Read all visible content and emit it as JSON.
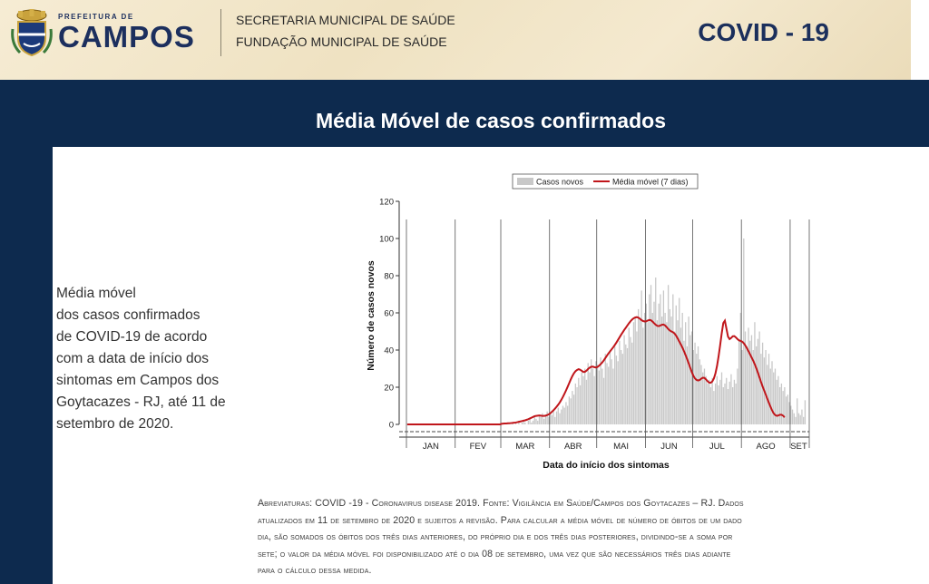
{
  "header": {
    "logo_small": "PREFEITURA DE",
    "logo_name": "CAMPOS",
    "line1": "SECRETARIA MUNICIPAL DE SAÚDE",
    "line2": "FUNDAÇÃO MUNICIPAL DE  SAÚDE",
    "covid_title": "COVID - 19"
  },
  "banner": {
    "title": "Média Móvel de casos confirmados"
  },
  "description": [
    "Média móvel",
    "dos casos confirmados",
    "de COVID-19 de acordo",
    "com a data de início dos",
    "sintomas em Campos dos",
    "Goytacazes - RJ, até 11 de",
    "setembro de 2020."
  ],
  "footnote": [
    "Abreviaturas: COVID -19 - Coronavirus disease 2019. Fonte: Vigilância em Saúde/Campos dos Goytacazes – RJ. Dados",
    "atualizados em 11 de setembro de 2020 e sujeitos a revisão. Para calcular a média móvel de número de óbitos de um dado",
    "dia, são somados os óbitos dos três dias anteriores, do próprio dia e dos três dias posteriores, dividindo-se a soma por",
    "sete; o valor da média móvel foi disponibilizado até o dia 08 de setembro, uma vez que são necessários três dias adiante",
    "para o cálculo dessa medida."
  ],
  "colors": {
    "bar": "#c8c8c8",
    "line": "#c0161b",
    "banner": "#0d2a4e"
  },
  "chart_data": {
    "type": "bar",
    "xlabel": "Data do início dos sintomas",
    "ylabel": "Número de casos novos",
    "ylim": [
      0,
      120
    ],
    "yticks": [
      0,
      20,
      40,
      60,
      80,
      100,
      120
    ],
    "months": [
      "JAN",
      "FEV",
      "MAR",
      "ABR",
      "MAI",
      "JUN",
      "JUL",
      "AGO",
      "SET"
    ],
    "month_start_day": [
      0,
      31,
      60,
      91,
      121,
      152,
      182,
      213,
      244
    ],
    "total_days": 255,
    "legend_position": "top",
    "series": [
      {
        "name": "Casos novos",
        "type": "bar",
        "values": [
          0,
          0,
          0,
          0,
          0,
          0,
          0,
          0,
          0,
          0,
          0,
          0,
          0,
          0,
          0,
          0,
          0,
          0,
          0,
          0,
          0,
          0,
          0,
          0,
          0,
          0,
          0,
          0,
          0,
          0,
          0,
          0,
          0,
          0,
          0,
          0,
          0,
          0,
          0,
          0,
          0,
          0,
          0,
          0,
          0,
          0,
          0,
          0,
          0,
          0,
          0,
          0,
          0,
          0,
          0,
          0,
          0,
          0,
          0,
          0,
          0,
          0,
          1,
          0,
          1,
          0,
          0,
          1,
          0,
          1,
          0,
          2,
          0,
          1,
          2,
          1,
          0,
          2,
          3,
          1,
          2,
          4,
          3,
          2,
          5,
          4,
          6,
          3,
          5,
          7,
          4,
          6,
          5,
          8,
          4,
          7,
          9,
          6,
          8,
          10,
          9,
          12,
          10,
          15,
          14,
          18,
          16,
          22,
          20,
          25,
          21,
          28,
          26,
          30,
          24,
          33,
          28,
          35,
          30,
          26,
          34,
          32,
          29,
          36,
          30,
          25,
          38,
          33,
          31,
          40,
          35,
          30,
          42,
          37,
          34,
          45,
          40,
          38,
          48,
          43,
          41,
          52,
          47,
          44,
          55,
          58,
          50,
          62,
          56,
          72,
          52,
          60,
          65,
          55,
          70,
          75,
          60,
          66,
          79,
          56,
          65,
          70,
          58,
          72,
          60,
          55,
          75,
          62,
          58,
          70,
          50,
          64,
          56,
          68,
          52,
          60,
          45,
          55,
          42,
          58,
          48,
          50,
          40,
          44,
          38,
          42,
          35,
          32,
          28,
          30,
          26,
          22,
          24,
          20,
          25,
          18,
          22,
          26,
          21,
          24,
          28,
          20,
          22,
          25,
          19,
          23,
          27,
          20,
          24,
          22,
          30,
          45,
          60,
          40,
          100,
          50,
          42,
          52,
          45,
          48,
          40,
          55,
          42,
          46,
          50,
          38,
          44,
          36,
          40,
          32,
          38,
          30,
          34,
          28,
          30,
          24,
          26,
          20,
          22,
          18,
          20,
          15,
          16,
          12,
          10,
          8,
          6,
          4,
          14,
          6,
          5,
          8,
          4,
          13,
          0,
          0,
          0
        ]
      },
      {
        "name": "Média móvel (7 dias)",
        "type": "line",
        "values": [
          0,
          0,
          0,
          0,
          0,
          0,
          0,
          0,
          0,
          0,
          0,
          0,
          0,
          0,
          0,
          0,
          0,
          0,
          0,
          0,
          0,
          0,
          0,
          0,
          0,
          0,
          0,
          0,
          0,
          0,
          0,
          0,
          0,
          0,
          0,
          0,
          0,
          0,
          0,
          0,
          0,
          0,
          0,
          0,
          0,
          0,
          0,
          0,
          0,
          0,
          0,
          0,
          0,
          0,
          0,
          0,
          0,
          0,
          0,
          0,
          0.3,
          0.4,
          0.5,
          0.5,
          0.6,
          0.6,
          0.7,
          0.8,
          0.9,
          1.0,
          1.2,
          1.4,
          1.6,
          1.8,
          2.0,
          2.2,
          2.5,
          2.8,
          3.2,
          3.6,
          4.0,
          4.4,
          4.6,
          4.7,
          4.8,
          4.7,
          4.6,
          4.6,
          4.7,
          5.0,
          5.4,
          6.0,
          6.8,
          7.6,
          8.5,
          9.5,
          10.6,
          11.8,
          13.2,
          14.8,
          16.5,
          18.3,
          20.2,
          22.2,
          24.2,
          26.0,
          27.5,
          28.6,
          29.3,
          29.7,
          29.4,
          28.8,
          28.2,
          28.3,
          28.9,
          29.8,
          30.5,
          31.0,
          31.1,
          30.8,
          30.6,
          30.9,
          31.6,
          32.4,
          33.3,
          34.4,
          35.7,
          37.0,
          38.2,
          39.3,
          40.4,
          41.5,
          42.7,
          44.0,
          45.4,
          46.8,
          48.2,
          49.5,
          50.8,
          52.0,
          53.2,
          54.4,
          55.5,
          56.4,
          57.1,
          57.5,
          57.7,
          57.4,
          56.8,
          56.1,
          55.6,
          55.4,
          55.5,
          55.9,
          56.2,
          56.0,
          55.3,
          54.4,
          53.6,
          53.0,
          52.9,
          53.2,
          53.6,
          53.7,
          53.2,
          52.3,
          51.3,
          50.5,
          50.0,
          49.6,
          48.9,
          47.7,
          46.2,
          44.6,
          43.0,
          41.3,
          39.4,
          37.3,
          35.1,
          32.8,
          30.4,
          28.1,
          26.1,
          24.7,
          23.9,
          23.6,
          23.9,
          24.6,
          25.1,
          25.0,
          24.2,
          23.2,
          22.5,
          22.4,
          23.1,
          24.7,
          27.4,
          31.4,
          36.6,
          42.6,
          49.0,
          54.5,
          55.8,
          51.5,
          47.2,
          45.9,
          46.5,
          47.4,
          47.5,
          46.8,
          45.9,
          45.2,
          44.9,
          44.5,
          43.7,
          42.5,
          41.0,
          39.4,
          37.7,
          36.0,
          34.3,
          32.4,
          30.2,
          27.8,
          25.3,
          22.8,
          20.4,
          18.2,
          16.0,
          13.8,
          11.6,
          9.5,
          7.6,
          6.0,
          5.0,
          4.6,
          4.8,
          5.2,
          5.2,
          4.7,
          3.8
        ]
      }
    ]
  }
}
